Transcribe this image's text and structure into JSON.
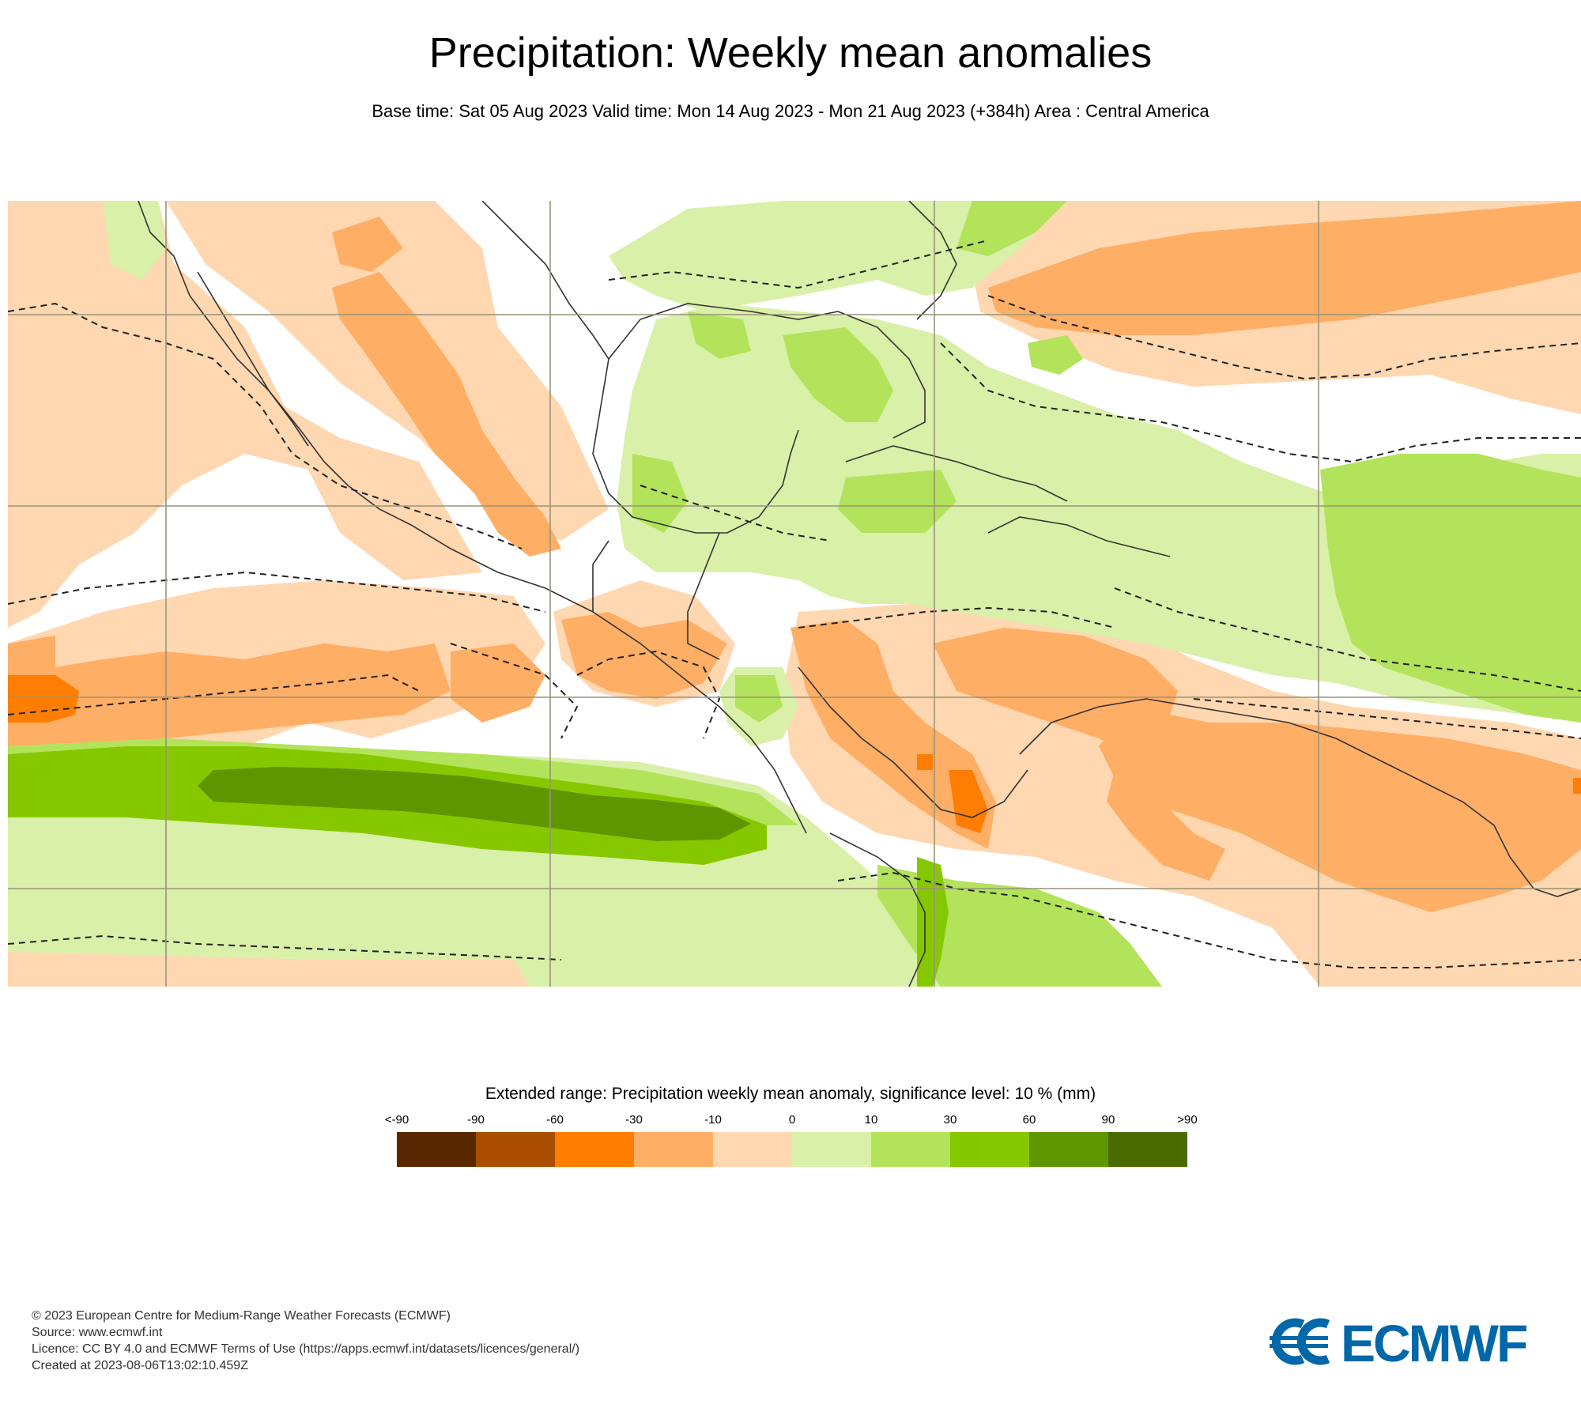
{
  "header": {
    "title": "Precipitation: Weekly mean anomalies",
    "subtitle": "Base time: Sat 05 Aug 2023 Valid time: Mon 14 Aug 2023 - Mon 21 Aug 2023 (+384h) Area : Central America"
  },
  "legend": {
    "title": "Extended range: Precipitation weekly mean anomaly, significance level: 10 % (mm)",
    "ticks": [
      "<-90",
      "-90",
      "-60",
      "-30",
      "-10",
      "0",
      "10",
      "30",
      "60",
      "90",
      ">90"
    ],
    "colors": [
      "#5a2800",
      "#a94d00",
      "#ff7d00",
      "#ffae65",
      "#ffd7b0",
      "#d9f0a8",
      "#b2e35a",
      "#86c800",
      "#5e9600",
      "#4a6a00"
    ]
  },
  "colors": {
    "neg_light": "#ffd7b0",
    "neg_mid": "#ffae65",
    "neg_strong": "#ff7d00",
    "pos_light": "#d9f0a8",
    "pos_mid": "#b2e35a",
    "pos_strong": "#86c800",
    "pos_dark": "#5e9600",
    "logo_blue": "#0068a8"
  },
  "footer": {
    "copyright": "© 2023 European Centre for Medium-Range Weather Forecasts (ECMWF)",
    "source": "Source: www.ecmwf.int",
    "licence": "Licence: CC BY 4.0 and ECMWF Terms of Use (https://apps.ecmwf.int/datasets/licences/general/)",
    "created": "Created at 2023-08-06T13:02:10.459Z"
  },
  "logo": {
    "text": "ECMWF"
  }
}
